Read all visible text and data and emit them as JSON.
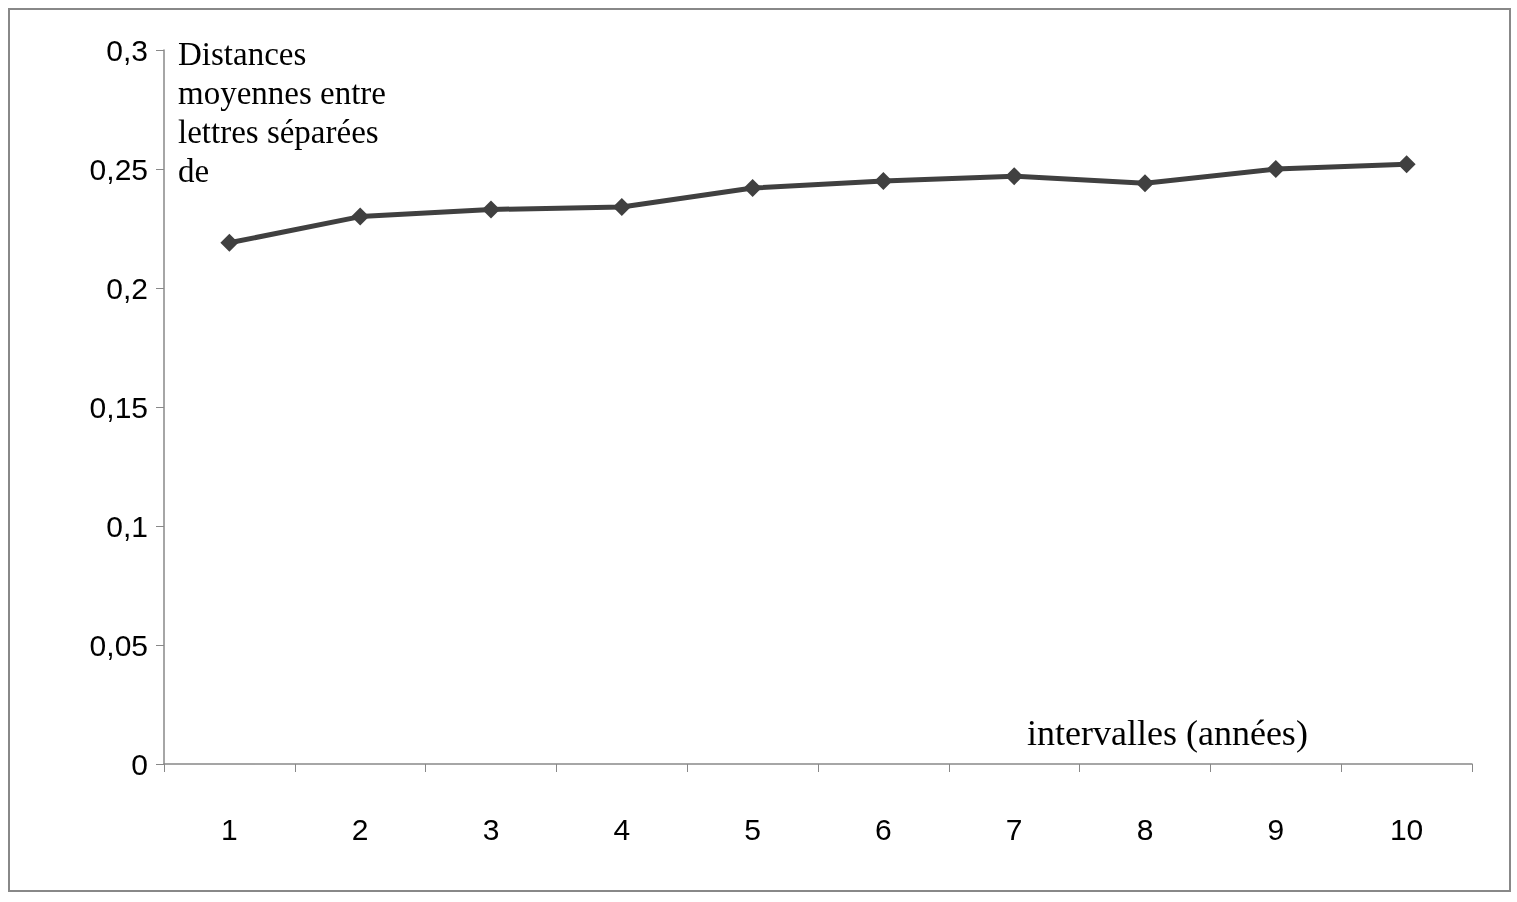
{
  "chart_data": {
    "type": "line",
    "ylabel": "Distances moyennes entre lettres séparées de",
    "xlabel": "intervalles (années)",
    "categories": [
      "1",
      "2",
      "3",
      "4",
      "5",
      "6",
      "7",
      "8",
      "9",
      "10"
    ],
    "series": [
      {
        "color": "#404040",
        "values": [
          0.219,
          0.23,
          0.233,
          0.234,
          0.242,
          0.245,
          0.247,
          0.244,
          0.25,
          0.252
        ]
      }
    ],
    "ylim": [
      0,
      0.3
    ],
    "yticks": [
      0,
      {
        "value": 0.05,
        "label": "0,05"
      },
      {
        "value": 0.1,
        "label": "0,1"
      },
      {
        "value": 0.15,
        "label": "0,15"
      },
      {
        "value": 0.2,
        "label": "0,2"
      },
      {
        "value": 0.25,
        "label": "0,25"
      },
      {
        "value": 0.3,
        "label": "0,3"
      }
    ],
    "grid": false,
    "marker": "diamond",
    "line_style": "solid"
  }
}
